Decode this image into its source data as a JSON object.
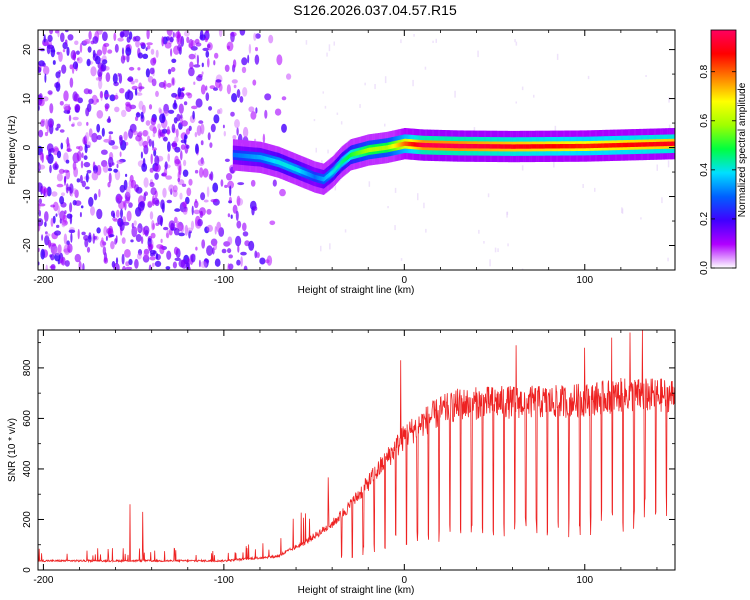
{
  "figure_title": "S126.2026.037.04.57.R15",
  "colors": {
    "snr_line": "#ee2222",
    "spectrogram_low": "#c8a8f0",
    "spectrogram_mid": "#6a00e8",
    "ridge_peak": "#ff2020"
  },
  "chart_data": [
    {
      "type": "heatmap",
      "title": "S126.2026.037.04.57.R15",
      "xlabel": "Height of straight line (km)",
      "ylabel": "Frequency (Hz)",
      "xlim": [
        -203,
        150
      ],
      "ylim": [
        -25,
        24
      ],
      "xticks": [
        -200,
        -100,
        0,
        100
      ],
      "xtick_labels": [
        "-200",
        "-100",
        "0",
        "100"
      ],
      "yticks": [
        -20,
        -10,
        0,
        10,
        20
      ],
      "ytick_labels": [
        "-20",
        "-10",
        "0",
        "10",
        "20"
      ],
      "colorbar": {
        "label": "Normalized spectral amplitude",
        "range": [
          0,
          0.97
        ],
        "ticks": [
          0,
          0.2,
          0.4,
          0.6,
          0.8
        ],
        "tick_labels": [
          "0.0",
          "0.2",
          "0.4",
          "0.6",
          "0.8"
        ],
        "colormap": [
          "#ffffff",
          "#b000ff",
          "#4000ff",
          "#0060ff",
          "#00e0ff",
          "#00ff40",
          "#a0ff00",
          "#ffff00",
          "#ff8000",
          "#ff0000",
          "#ff0060"
        ]
      },
      "ridge": {
        "x": [
          -95,
          -80,
          -70,
          -60,
          -50,
          -45,
          -40,
          -35,
          -30,
          -20,
          -10,
          0,
          10,
          30,
          60,
          100,
          150
        ],
        "frequency": [
          -1.5,
          -2.0,
          -3.0,
          -4.5,
          -6.0,
          -6.5,
          -5.0,
          -3.0,
          -1.5,
          -0.5,
          0.0,
          0.8,
          0.5,
          0.3,
          0.2,
          0.3,
          0.8
        ],
        "amplitude": [
          0.3,
          0.35,
          0.4,
          0.4,
          0.3,
          0.35,
          0.4,
          0.45,
          0.5,
          0.6,
          0.6,
          0.8,
          0.95,
          0.95,
          0.9,
          0.85,
          0.9
        ]
      },
      "noise": {
        "x_extent": [
          -203,
          -60
        ],
        "frequency_extent": [
          -25,
          24
        ],
        "amplitude": [
          0.05,
          0.2
        ]
      }
    },
    {
      "type": "line",
      "title": "",
      "xlabel": "Height of straight line (km)",
      "ylabel": "SNR (10 * v/v)",
      "xlim": [
        -203,
        150
      ],
      "ylim": [
        0,
        950
      ],
      "xticks": [
        -200,
        -100,
        0,
        100
      ],
      "xtick_labels": [
        "-200",
        "-100",
        "0",
        "100"
      ],
      "yticks": [
        0,
        200,
        400,
        600,
        800
      ],
      "ytick_labels": [
        "0",
        "200",
        "400",
        "600",
        "800"
      ],
      "envelope": {
        "x": [
          -203,
          -160,
          -150,
          -140,
          -100,
          -70,
          -55,
          -40,
          -30,
          -20,
          -10,
          0,
          10,
          20,
          30,
          50,
          80,
          100,
          120,
          150
        ],
        "upper": [
          40,
          40,
          40,
          40,
          40,
          60,
          120,
          200,
          280,
          380,
          480,
          580,
          640,
          690,
          720,
          730,
          730,
          740,
          760,
          760
        ],
        "dip_depth": [
          5,
          5,
          5,
          5,
          10,
          20,
          40,
          60,
          80,
          100,
          130,
          150,
          160,
          170,
          180,
          180,
          200,
          220,
          240,
          300
        ]
      },
      "spikes": [
        {
          "x": -152,
          "value": 260
        },
        {
          "x": -145,
          "value": 230
        },
        {
          "x": -2,
          "value": 830
        },
        {
          "x": 62,
          "value": 890
        },
        {
          "x": 100,
          "value": 880
        },
        {
          "x": 115,
          "value": 920
        },
        {
          "x": 125,
          "value": 940
        },
        {
          "x": 132,
          "value": 950
        }
      ]
    }
  ]
}
